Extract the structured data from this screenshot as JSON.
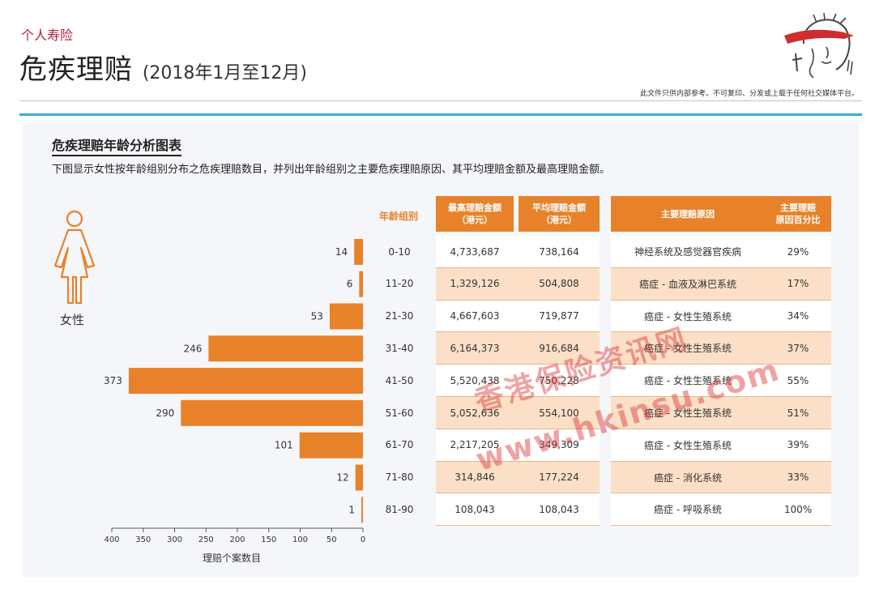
{
  "header": {
    "category": "个人寿险",
    "title": "危疾理赔",
    "subtitle": "(2018年1月至12月)",
    "disclaimer": "此文件只供内部参考。不可复印、分发或上载于任何社交媒体平台。"
  },
  "section": {
    "title": "危疾理赔年龄分析图表",
    "description": "下图显示女性按年龄组别分布之危疾理赔数目，并列出年龄组别之主要危疾理赔原因、其平均理赔金额及最高理赔金额。"
  },
  "gender_label": "女性",
  "icons": {
    "figure": "female-figure-icon",
    "logo": "brand-head-logo-icon"
  },
  "colors": {
    "accent": "#e8822a",
    "row_alt": "#fbe0c7",
    "rule": "#3fa7d9",
    "category": "#b3213b"
  },
  "table": {
    "age_header": "年龄组别",
    "max_header_line1": "最高理赔金额",
    "max_header_line2": "（港元）",
    "avg_header_line1": "平均理赔金额",
    "avg_header_line2": "（港元）",
    "cause_header": "主要理赔原因",
    "pct_header_line1": "主要理赔",
    "pct_header_line2": "原因百分比",
    "rows": [
      {
        "age": "0-10",
        "max": "4,733,687",
        "avg": "738,164",
        "cause": "神经系统及感觉器官疾病",
        "pct": "29%"
      },
      {
        "age": "11-20",
        "max": "1,329,126",
        "avg": "504,808",
        "cause": "癌症 - 血液及淋巴系统",
        "pct": "17%"
      },
      {
        "age": "21-30",
        "max": "4,667,603",
        "avg": "719,877",
        "cause": "癌症 - 女性生殖系统",
        "pct": "34%"
      },
      {
        "age": "31-40",
        "max": "6,164,373",
        "avg": "916,684",
        "cause": "癌症 - 女性生殖系统",
        "pct": "37%"
      },
      {
        "age": "41-50",
        "max": "5,520,438",
        "avg": "750,228",
        "cause": "癌症 - 女性生殖系统",
        "pct": "55%"
      },
      {
        "age": "51-60",
        "max": "5,052,636",
        "avg": "554,100",
        "cause": "癌症 - 女性生殖系统",
        "pct": "51%"
      },
      {
        "age": "61-70",
        "max": "2,217,205",
        "avg": "349,309",
        "cause": "癌症 - 女性生殖系统",
        "pct": "39%"
      },
      {
        "age": "71-80",
        "max": "314,846",
        "avg": "177,224",
        "cause": "癌症 - 消化系统",
        "pct": "33%"
      },
      {
        "age": "81-90",
        "max": "108,043",
        "avg": "108,043",
        "cause": "癌症 - 呼吸系统",
        "pct": "100%"
      }
    ]
  },
  "chart_data": {
    "type": "bar",
    "orientation": "horizontal",
    "direction": "right-to-left",
    "categories": [
      "0-10",
      "11-20",
      "21-30",
      "31-40",
      "41-50",
      "51-60",
      "61-70",
      "71-80",
      "81-90"
    ],
    "values": [
      14,
      6,
      53,
      246,
      373,
      290,
      101,
      12,
      1
    ],
    "xlabel": "理赔个案数目",
    "xlim": [
      0,
      400
    ],
    "xticks": [
      400,
      350,
      300,
      250,
      200,
      150,
      100,
      50,
      0
    ],
    "color": "#e8822a",
    "grid": false,
    "legend": "none"
  },
  "watermark": {
    "line1": "香港保险资讯网",
    "line2": "www.hkinsu.com"
  }
}
